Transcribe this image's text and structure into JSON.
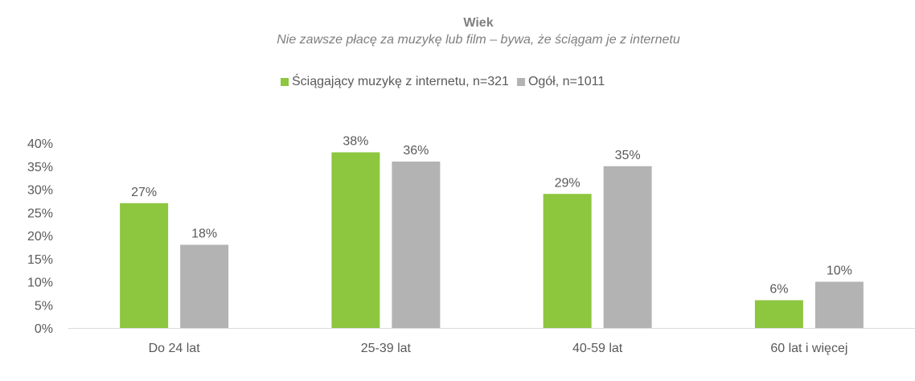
{
  "chart_data": {
    "type": "bar",
    "title": "Wiek",
    "subtitle": "Nie zawsze płacę za muzykę lub film – bywa, że ściągam je z internetu",
    "categories": [
      "Do 24 lat",
      "25-39 lat",
      "40-59 lat",
      "60 lat i więcej"
    ],
    "series": [
      {
        "name": "Ściągający muzykę z internetu, n=321",
        "color": "#8dc63f",
        "values": [
          27,
          38,
          29,
          6
        ],
        "labels": [
          "27%",
          "38%",
          "29%",
          "6%"
        ]
      },
      {
        "name": "Ogół, n=1011",
        "color": "#b3b3b3",
        "values": [
          18,
          36,
          35,
          10
        ],
        "labels": [
          "18%",
          "36%",
          "35%",
          "10%"
        ]
      }
    ],
    "ylim": [
      0,
      40
    ],
    "yticks": [
      0,
      5,
      10,
      15,
      20,
      25,
      30,
      35,
      40
    ],
    "ytick_labels": [
      "0%",
      "5%",
      "10%",
      "15%",
      "20%",
      "25%",
      "30%",
      "35%",
      "40%"
    ],
    "xlabel": "",
    "ylabel": "",
    "grid": false,
    "legend_position": "top-center"
  }
}
